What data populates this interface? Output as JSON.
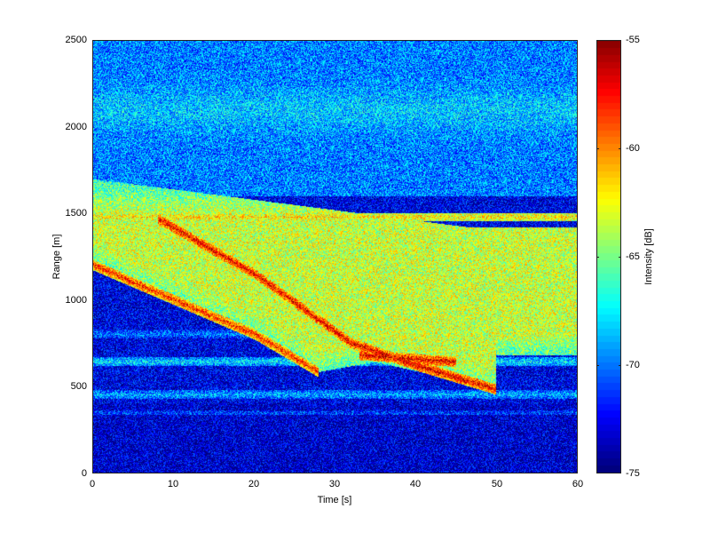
{
  "chart_data": {
    "type": "heatmap",
    "title": "",
    "xlabel": "Time [s]",
    "ylabel": "Range [m]",
    "colorbar_label": "Intensity [dB]",
    "colormap": "jet",
    "xlim": [
      0,
      60
    ],
    "ylim": [
      0,
      2500
    ],
    "clim": [
      -75,
      -55
    ],
    "x_ticks": [
      0,
      10,
      20,
      30,
      40,
      50,
      60
    ],
    "y_ticks": [
      0,
      500,
      1000,
      1500,
      2000,
      2500
    ],
    "colorbar_ticks": [
      -75,
      -70,
      -65,
      -60,
      -55
    ],
    "grid": false,
    "features": {
      "background_dB": -73,
      "upper_noise_band": {
        "range_from": 1600,
        "range_to": 2500,
        "dB": -70
      },
      "main_echo_region": {
        "range_from_at_t0": 1200,
        "range_to_at_t0": 1700,
        "dB": -64
      },
      "strong_tracks": [
        {
          "name": "lower-edge-track",
          "points": [
            [
              0,
              1200
            ],
            [
              10,
              1000
            ],
            [
              20,
              800
            ],
            [
              28,
              580
            ]
          ],
          "dB": -58
        },
        {
          "name": "diagonal-track",
          "points": [
            [
              8,
              1470
            ],
            [
              20,
              1150
            ],
            [
              32,
              750
            ],
            [
              40,
              620
            ],
            [
              50,
              480
            ]
          ],
          "dB": -57
        },
        {
          "name": "bright-patch",
          "points": [
            [
              33,
              680
            ],
            [
              45,
              640
            ]
          ],
          "dB": -57
        }
      ],
      "horizontal_bands": [
        {
          "range": 1480,
          "dB": -62
        },
        {
          "range": 1330,
          "dB": -63
        },
        {
          "range": 800,
          "dB": -70
        },
        {
          "range": 640,
          "dB": -68
        },
        {
          "range": 450,
          "dB": -69
        },
        {
          "range": 340,
          "dB": -71
        }
      ]
    }
  },
  "axes": {
    "y_tick_labels": [
      "0",
      "500",
      "1000",
      "1500",
      "2000",
      "2500"
    ],
    "x_tick_labels": [
      "0",
      "10",
      "20",
      "30",
      "40",
      "50",
      "60"
    ],
    "colorbar_tick_labels": [
      "-75",
      "-70",
      "-65",
      "-60",
      "-55"
    ]
  }
}
